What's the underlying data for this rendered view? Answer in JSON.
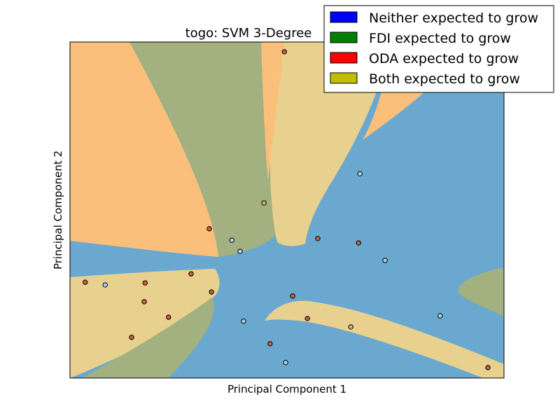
{
  "chart_data": {
    "type": "scatter",
    "title": "togo: SVM 3-Degree",
    "xlabel": "Principal Component 1",
    "ylabel": "Principal Component 2",
    "xlim": [
      0,
      100
    ],
    "ylim": [
      0,
      100
    ],
    "ticks_visible": false,
    "grid": false,
    "legend_placement": "top-right",
    "legend": [
      {
        "label": "Neither expected to grow",
        "color": "#0000ff"
      },
      {
        "label": "FDI expected to grow",
        "color": "#008000"
      },
      {
        "label": "ODA expected to grow",
        "color": "#ff0000"
      },
      {
        "label": "Both expected to grow",
        "color": "#bfbf00"
      }
    ],
    "region_colors": {
      "neither": "#6aa8d0",
      "fdi": "#a3b07f",
      "oda": "#fbbf7c",
      "both": "#e8d08f"
    },
    "marker_colors": {
      "neither": "#a8d4ee",
      "oda": "#c8613a",
      "both": "#c9b873"
    },
    "points": [
      {
        "x": 49.4,
        "y": 97.1,
        "class": "oda"
      },
      {
        "x": 66.8,
        "y": 60.8,
        "class": "neither"
      },
      {
        "x": 44.7,
        "y": 52.1,
        "class": "both"
      },
      {
        "x": 32.1,
        "y": 44.4,
        "class": "oda"
      },
      {
        "x": 37.3,
        "y": 41.0,
        "class": "neither"
      },
      {
        "x": 39.2,
        "y": 37.7,
        "class": "neither"
      },
      {
        "x": 57.1,
        "y": 41.5,
        "class": "oda"
      },
      {
        "x": 66.5,
        "y": 40.2,
        "class": "oda"
      },
      {
        "x": 72.6,
        "y": 35.0,
        "class": "neither"
      },
      {
        "x": 27.9,
        "y": 31.0,
        "class": "oda"
      },
      {
        "x": 3.5,
        "y": 28.5,
        "class": "oda"
      },
      {
        "x": 8.1,
        "y": 27.7,
        "class": "neither"
      },
      {
        "x": 17.3,
        "y": 28.3,
        "class": "oda"
      },
      {
        "x": 32.6,
        "y": 25.6,
        "class": "oda"
      },
      {
        "x": 17.1,
        "y": 22.7,
        "class": "oda"
      },
      {
        "x": 51.3,
        "y": 24.4,
        "class": "oda"
      },
      {
        "x": 22.7,
        "y": 18.1,
        "class": "oda"
      },
      {
        "x": 54.7,
        "y": 17.7,
        "class": "oda"
      },
      {
        "x": 40.0,
        "y": 16.9,
        "class": "neither"
      },
      {
        "x": 64.7,
        "y": 15.2,
        "class": "both"
      },
      {
        "x": 85.3,
        "y": 18.5,
        "class": "neither"
      },
      {
        "x": 14.2,
        "y": 12.1,
        "class": "oda"
      },
      {
        "x": 46.1,
        "y": 10.2,
        "class": "oda"
      },
      {
        "x": 49.7,
        "y": 4.6,
        "class": "neither"
      },
      {
        "x": 96.3,
        "y": 3.1,
        "class": "oda"
      }
    ]
  }
}
